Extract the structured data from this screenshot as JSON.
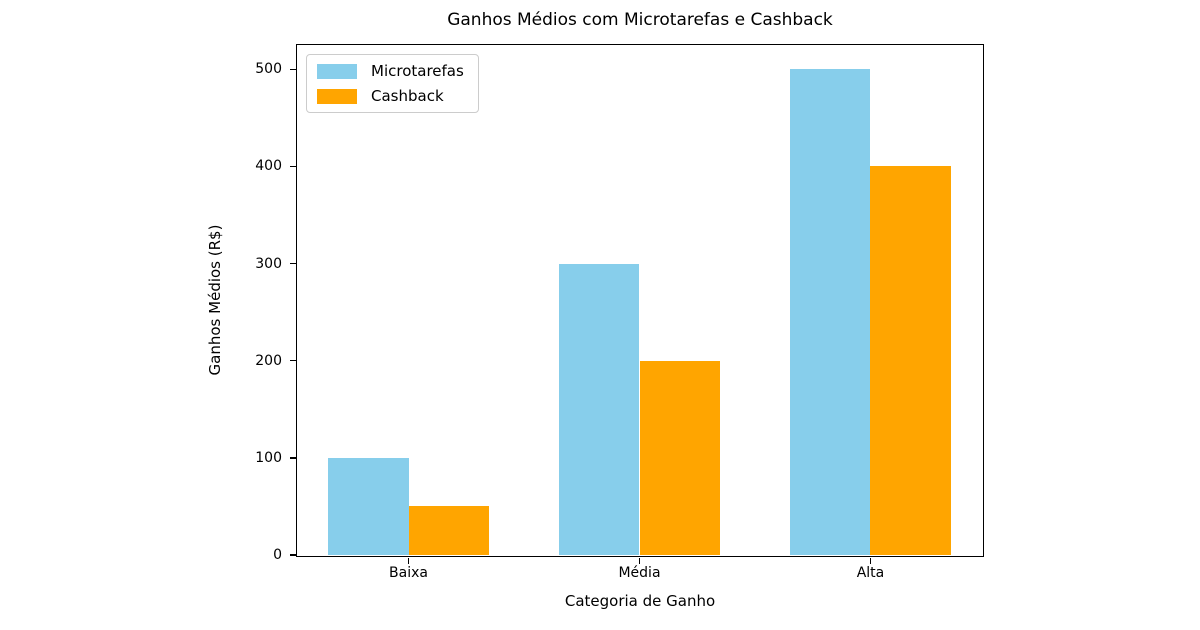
{
  "chart_data": {
    "type": "bar",
    "title": "Ganhos Médios com Microtarefas e Cashback",
    "xlabel": "Categoria de Ganho",
    "ylabel": "Ganhos Médios (R$)",
    "categories": [
      "Baixa",
      "Média",
      "Alta"
    ],
    "series": [
      {
        "name": "Microtarefas",
        "color": "#87CEEB",
        "values": [
          100,
          300,
          500
        ]
      },
      {
        "name": "Cashback",
        "color": "#FFA500",
        "values": [
          50,
          200,
          400
        ]
      }
    ],
    "ylim": [
      0,
      525
    ],
    "yticks": [
      0,
      100,
      200,
      300,
      400,
      500
    ],
    "legend_position": "upper left",
    "grid": false,
    "spine_color": "#000000",
    "background_color": "#ffffff"
  }
}
